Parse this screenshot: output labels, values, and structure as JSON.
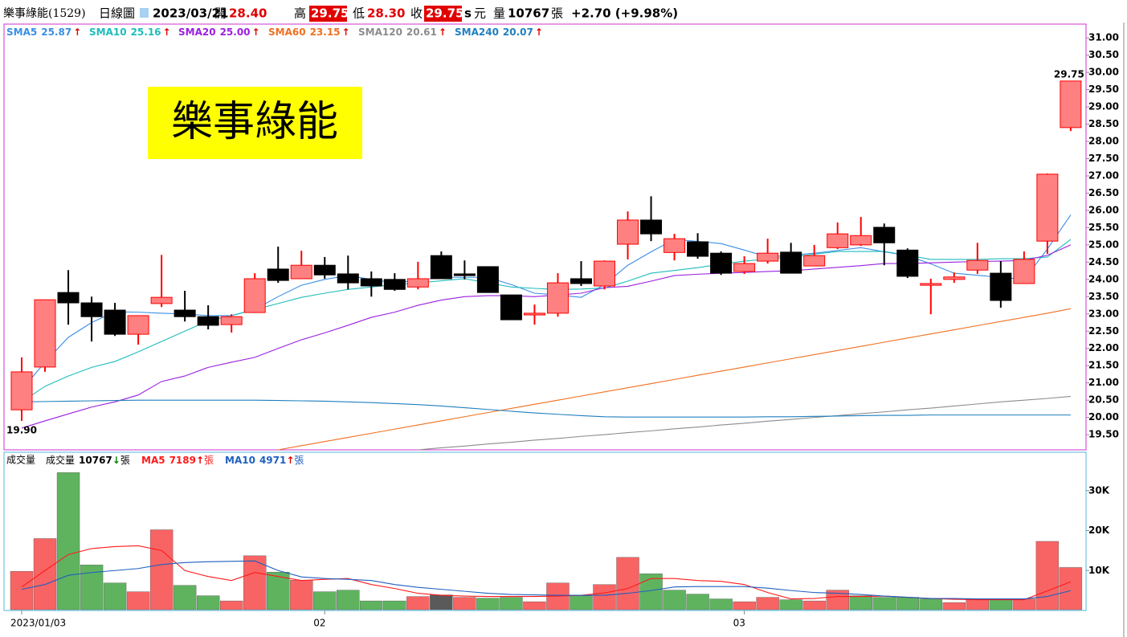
{
  "header": {
    "name": "樂事綠能(1529)",
    "period": "日線圖",
    "date": "2023/03/21",
    "open_label": "開",
    "open": "28.40",
    "high_label": "高",
    "high": "29.75",
    "low_label": "低",
    "low": "28.30",
    "close_label": "收",
    "close": "29.75",
    "s": "s",
    "unit": "元",
    "volume_label": "量",
    "volume": "10767",
    "volume_unit": "張",
    "change": "+2.70 (+9.98%)"
  },
  "chart_data": {
    "type": "candlestick",
    "overlay_title": "樂事綠能",
    "categories": [
      "2023/01/03",
      null,
      null,
      null,
      null,
      null,
      null,
      null,
      null,
      null,
      null,
      null,
      null,
      "02",
      null,
      null,
      null,
      null,
      null,
      null,
      null,
      null,
      null,
      null,
      null,
      null,
      null,
      null,
      null,
      null,
      null,
      "03",
      null,
      null,
      null,
      null,
      null,
      null,
      null,
      null,
      null,
      null,
      null,
      null,
      null,
      null
    ],
    "up_color": "#ff8080",
    "up_edge": "#ff0000",
    "down_color": "#000000",
    "open": [
      20.22,
      21.46,
      23.62,
      23.32,
      23.11,
      22.41,
      23.3,
      23.11,
      22.92,
      22.69,
      23.04,
      24.3,
      24.02,
      24.41,
      24.16,
      24.02,
      24.0,
      23.78,
      24.69,
      24.16,
      24.37,
      23.55,
      22.97,
      23.02,
      24.02,
      23.81,
      25.02,
      25.72,
      24.78,
      25.09,
      24.76,
      24.23,
      24.53,
      24.79,
      24.39,
      24.92,
      25.0,
      25.51,
      24.85,
      23.83,
      24.0,
      24.27,
      24.18,
      23.88,
      25.11,
      28.4
    ],
    "high": [
      21.74,
      23.41,
      24.27,
      23.5,
      23.32,
      22.95,
      24.71,
      23.67,
      23.25,
      22.99,
      24.18,
      24.95,
      24.83,
      24.65,
      24.69,
      24.23,
      24.18,
      24.51,
      24.81,
      24.55,
      24.37,
      23.55,
      23.27,
      24.18,
      24.53,
      24.55,
      25.97,
      26.41,
      25.32,
      25.34,
      24.81,
      24.67,
      25.18,
      25.06,
      25.0,
      25.65,
      25.81,
      25.62,
      24.9,
      24.02,
      24.2,
      25.06,
      24.53,
      24.81,
      27.07,
      29.75
    ],
    "low": [
      19.9,
      21.32,
      22.69,
      22.2,
      22.36,
      22.11,
      23.2,
      22.78,
      22.55,
      22.46,
      23.04,
      23.9,
      24.02,
      24.02,
      23.71,
      23.5,
      23.67,
      23.71,
      24.02,
      24.0,
      23.62,
      22.83,
      22.69,
      22.92,
      23.81,
      23.71,
      24.58,
      25.11,
      24.55,
      24.6,
      24.13,
      24.16,
      24.46,
      24.18,
      24.39,
      24.88,
      24.97,
      24.41,
      24.04,
      22.99,
      23.9,
      24.16,
      23.18,
      23.88,
      24.74,
      28.3
    ],
    "close": [
      21.32,
      23.41,
      23.32,
      22.92,
      22.41,
      22.95,
      23.48,
      22.92,
      22.67,
      22.92,
      24.02,
      23.97,
      24.41,
      24.13,
      23.9,
      23.81,
      23.71,
      24.02,
      24.02,
      24.11,
      23.62,
      22.83,
      23.02,
      23.9,
      23.88,
      24.53,
      25.72,
      25.32,
      25.18,
      24.67,
      24.18,
      24.46,
      24.76,
      24.18,
      24.69,
      25.32,
      25.27,
      25.06,
      24.09,
      23.88,
      24.07,
      24.55,
      23.39,
      24.58,
      27.05,
      29.75
    ],
    "ylim": [
      19.06,
      31.4
    ],
    "yticks": [
      {
        "value": 19.5,
        "label": "19.50"
      },
      {
        "value": 20,
        "label": "20.00"
      },
      {
        "value": 20.5,
        "label": "20.50"
      },
      {
        "value": 21,
        "label": "21.00"
      },
      {
        "value": 21.5,
        "label": "21.50"
      },
      {
        "value": 22,
        "label": "22.00"
      },
      {
        "value": 22.5,
        "label": "22.50"
      },
      {
        "value": 23,
        "label": "23.00"
      },
      {
        "value": 23.5,
        "label": "23.50"
      },
      {
        "value": 24,
        "label": "24.00"
      },
      {
        "value": 24.5,
        "label": "24.50"
      },
      {
        "value": 25,
        "label": "25.00"
      },
      {
        "value": 25.5,
        "label": "25.50"
      },
      {
        "value": 26,
        "label": "26.00"
      },
      {
        "value": 26.5,
        "label": "26.50"
      },
      {
        "value": 27,
        "label": "27.00"
      },
      {
        "value": 27.5,
        "label": "27.50"
      },
      {
        "value": 28,
        "label": "28.00"
      },
      {
        "value": 28.5,
        "label": "28.50"
      },
      {
        "value": 29,
        "label": "29.00"
      },
      {
        "value": 29.5,
        "label": "29.50"
      },
      {
        "value": 30,
        "label": "30.00"
      },
      {
        "value": 30.5,
        "label": "30.50"
      },
      {
        "value": 31,
        "label": "31.00"
      }
    ],
    "annotations": [
      {
        "index": 45,
        "value": 29.75,
        "label": "29.75"
      },
      {
        "index": 0,
        "value": 19.9,
        "label": "19.90"
      }
    ],
    "series": [
      {
        "name": "SMA5",
        "color": "#3a8ee6",
        "legend_label": "25.87",
        "trend": "↑",
        "values": [
          20.8,
          21.6,
          22.32,
          22.75,
          23.06,
          23.05,
          23.02,
          23.0,
          22.95,
          22.95,
          23.13,
          23.5,
          23.83,
          24.0,
          24.11,
          24.0,
          23.9,
          23.98,
          24.06,
          24.06,
          24.06,
          23.85,
          23.6,
          23.55,
          23.48,
          23.85,
          24.41,
          24.8,
          25.16,
          25.1,
          25.04,
          24.85,
          24.65,
          24.7,
          24.76,
          24.84,
          24.92,
          24.8,
          24.69,
          24.45,
          24.18,
          24.12,
          24.06,
          24.0,
          24.88,
          25.87
        ]
      },
      {
        "name": "SMA10",
        "color": "#1fbcbc",
        "legend_label": "25.16",
        "trend": "↑",
        "values": [
          20.45,
          20.9,
          21.2,
          21.45,
          21.62,
          21.9,
          22.2,
          22.5,
          22.8,
          22.95,
          23.13,
          23.3,
          23.48,
          23.6,
          23.71,
          23.78,
          23.85,
          23.9,
          23.96,
          24.02,
          23.9,
          23.78,
          23.74,
          23.71,
          23.72,
          23.75,
          23.95,
          24.18,
          24.26,
          24.34,
          24.44,
          24.53,
          24.59,
          24.65,
          24.73,
          24.81,
          24.81,
          24.81,
          24.7,
          24.58,
          24.58,
          24.58,
          24.6,
          24.6,
          24.65,
          25.16
        ]
      },
      {
        "name": "SMA20",
        "color": "#9b1fe0",
        "legend_label": "25.00",
        "trend": "↑",
        "values": [
          19.69,
          19.9,
          20.1,
          20.3,
          20.45,
          20.65,
          21.04,
          21.2,
          21.45,
          21.6,
          21.74,
          22.0,
          22.25,
          22.45,
          22.67,
          22.9,
          23.05,
          23.25,
          23.4,
          23.5,
          23.53,
          23.53,
          23.5,
          23.55,
          23.6,
          23.76,
          23.8,
          23.95,
          24.11,
          24.15,
          24.18,
          24.2,
          24.23,
          24.25,
          24.3,
          24.35,
          24.4,
          24.46,
          24.46,
          24.48,
          24.5,
          24.52,
          24.53,
          24.55,
          24.7,
          25.0
        ]
      },
      {
        "name": "SMA60",
        "color": "#f07020",
        "legend_label": "23.15",
        "trend": "↑",
        "values": [
          null,
          null,
          null,
          null,
          null,
          null,
          null,
          null,
          null,
          null,
          null,
          19.06,
          19.18,
          19.3,
          19.42,
          19.54,
          19.66,
          19.78,
          19.9,
          20.02,
          20.14,
          20.26,
          20.38,
          20.5,
          20.62,
          20.74,
          20.86,
          20.98,
          21.1,
          21.22,
          21.34,
          21.46,
          21.58,
          21.7,
          21.82,
          21.94,
          22.06,
          22.18,
          22.3,
          22.42,
          22.54,
          22.66,
          22.78,
          22.9,
          23.02,
          23.15
        ]
      },
      {
        "name": "SMA120",
        "color": "#8c8c8c",
        "legend_label": "20.61",
        "trend": "↑",
        "values": [
          null,
          null,
          null,
          null,
          null,
          null,
          null,
          null,
          null,
          null,
          null,
          null,
          null,
          null,
          null,
          null,
          null,
          19.06,
          19.12,
          19.17,
          19.23,
          19.28,
          19.34,
          19.39,
          19.45,
          19.5,
          19.56,
          19.61,
          19.67,
          19.72,
          19.78,
          19.83,
          19.89,
          19.94,
          20.0,
          20.05,
          20.11,
          20.16,
          20.22,
          20.27,
          20.33,
          20.39,
          20.45,
          20.5,
          20.55,
          20.61
        ]
      },
      {
        "name": "SMA240",
        "color": "#1f7fbf",
        "legend_label": "20.07",
        "trend": "↑",
        "values": [
          20.45,
          20.46,
          20.47,
          20.48,
          20.49,
          20.5,
          20.5,
          20.5,
          20.5,
          20.5,
          20.5,
          20.49,
          20.48,
          20.47,
          20.45,
          20.43,
          20.4,
          20.37,
          20.33,
          20.28,
          20.23,
          20.18,
          20.13,
          20.09,
          20.05,
          20.02,
          20.01,
          20.01,
          20.01,
          20.01,
          20.01,
          20.01,
          20.02,
          20.02,
          20.03,
          20.04,
          20.05,
          20.06,
          20.06,
          20.07,
          20.07,
          20.07,
          20.07,
          20.07,
          20.07,
          20.07
        ]
      }
    ],
    "volume": {
      "label": "成交量",
      "name": "成交量",
      "legend_label": "10767",
      "trend": "↓",
      "trend_color": "#008000",
      "unit": "張",
      "values": [
        9800,
        18000,
        34500,
        11400,
        6900,
        4700,
        20200,
        6300,
        3700,
        2400,
        13700,
        9600,
        7600,
        4700,
        5100,
        2400,
        2400,
        3500,
        3900,
        3300,
        3100,
        3300,
        2200,
        6900,
        3700,
        6500,
        13300,
        9200,
        5100,
        4100,
        2900,
        2200,
        3300,
        2700,
        2400,
        5100,
        3700,
        3300,
        3300,
        2900,
        2000,
        2900,
        2700,
        2900,
        17300,
        10767
      ],
      "colors": [
        "#f86464",
        "#f86464",
        "#5fb35f",
        "#5fb35f",
        "#5fb35f",
        "#f86464",
        "#f86464",
        "#5fb35f",
        "#5fb35f",
        "#f86464",
        "#f86464",
        "#5fb35f",
        "#f86464",
        "#5fb35f",
        "#5fb35f",
        "#5fb35f",
        "#5fb35f",
        "#f86464",
        "#5a5a5a",
        "#f86464",
        "#5fb35f",
        "#5fb35f",
        "#f86464",
        "#f86464",
        "#5fb35f",
        "#f86464",
        "#f86464",
        "#5fb35f",
        "#5fb35f",
        "#5fb35f",
        "#5fb35f",
        "#f86464",
        "#f86464",
        "#5fb35f",
        "#f86464",
        "#f86464",
        "#5fb35f",
        "#5fb35f",
        "#5fb35f",
        "#5fb35f",
        "#f86464",
        "#f86464",
        "#5fb35f",
        "#f86464",
        "#f86464",
        "#f86464"
      ],
      "ylim": [
        0,
        39600
      ],
      "yticks": [
        {
          "value": 10000,
          "label": "10K"
        },
        {
          "value": 20000,
          "label": "20K"
        },
        {
          "value": 30000,
          "label": "30K"
        }
      ],
      "series": [
        {
          "name": "MA5",
          "color": "#ff1a1a",
          "legend_label": "7189",
          "trend": "↑",
          "unit": "張",
          "values": [
            5900,
            10000,
            14000,
            15500,
            16000,
            16200,
            15000,
            10000,
            8500,
            7500,
            9500,
            8500,
            7500,
            7800,
            8000,
            6500,
            5500,
            4300,
            3800,
            3600,
            3500,
            3500,
            3500,
            3600,
            3800,
            4400,
            5500,
            8000,
            8000,
            7500,
            7300,
            6500,
            4500,
            2900,
            3000,
            3500,
            3500,
            3600,
            3300,
            3000,
            2800,
            2700,
            2700,
            2700,
            4900,
            7189
          ]
        },
        {
          "name": "MA10",
          "color": "#1f5fc0",
          "legend_label": "4971",
          "trend": "↑",
          "unit": "張",
          "values": [
            5300,
            6500,
            8800,
            9500,
            10000,
            10500,
            11500,
            12000,
            12200,
            12300,
            12400,
            10000,
            8400,
            8000,
            7800,
            7500,
            6500,
            5800,
            5300,
            4800,
            4300,
            4000,
            3900,
            3800,
            3800,
            3800,
            4300,
            5000,
            5900,
            6000,
            6000,
            6000,
            5600,
            5000,
            4500,
            4300,
            4000,
            3600,
            3300,
            3000,
            3000,
            2900,
            2900,
            2900,
            3500,
            4971
          ]
        }
      ]
    }
  }
}
